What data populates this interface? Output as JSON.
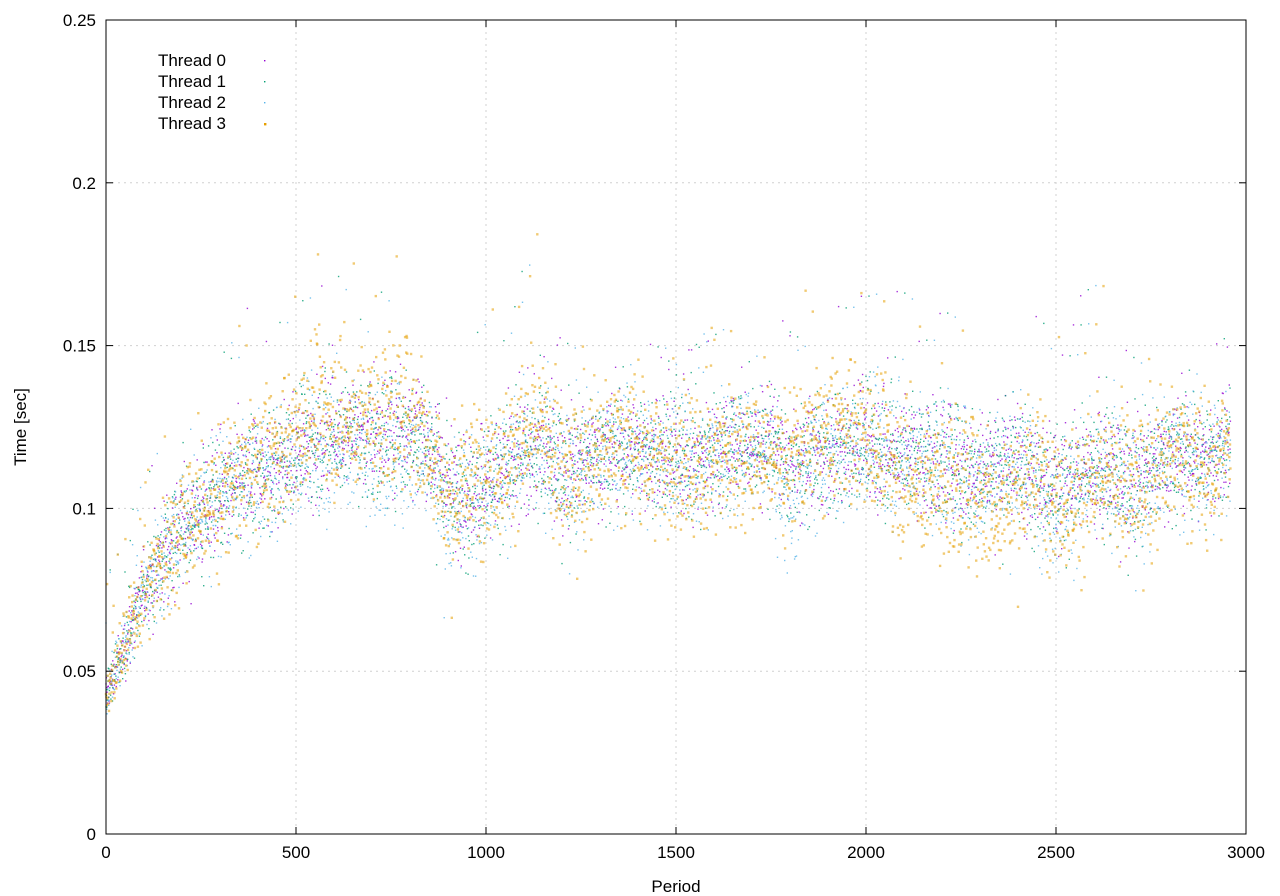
{
  "chart_data": {
    "type": "scatter",
    "title": "",
    "xlabel": "Period",
    "ylabel": "Time [sec]",
    "xlim": [
      0,
      3000
    ],
    "ylim": [
      0,
      0.25
    ],
    "xticks": [
      0,
      500,
      1000,
      1500,
      2000,
      2500,
      3000
    ],
    "yticks": [
      0,
      0.05,
      0.1,
      0.15,
      0.2,
      0.25
    ],
    "xtick_labels": [
      "0",
      "500",
      "1000",
      "1500",
      "2000",
      "2500",
      "3000"
    ],
    "ytick_labels": [
      "0",
      "0.05",
      "0.1",
      "0.15",
      "0.2",
      "0.25"
    ],
    "grid": true,
    "legend_position": "top-left",
    "series": [
      {
        "name": "Thread 0",
        "color": "#9400d3",
        "marker": "dot",
        "trend": [
          [
            0,
            0.042
          ],
          [
            25,
            0.05
          ],
          [
            50,
            0.058
          ],
          [
            75,
            0.067
          ],
          [
            100,
            0.075
          ],
          [
            150,
            0.086
          ],
          [
            200,
            0.094
          ],
          [
            250,
            0.099
          ],
          [
            300,
            0.103
          ],
          [
            350,
            0.107
          ],
          [
            400,
            0.11
          ],
          [
            450,
            0.113
          ],
          [
            500,
            0.116
          ],
          [
            550,
            0.121
          ],
          [
            600,
            0.123
          ],
          [
            650,
            0.124
          ],
          [
            700,
            0.122
          ],
          [
            750,
            0.124
          ],
          [
            800,
            0.126
          ],
          [
            850,
            0.12
          ],
          [
            900,
            0.107
          ],
          [
            950,
            0.106
          ],
          [
            1000,
            0.11
          ],
          [
            1050,
            0.112
          ],
          [
            1100,
            0.115
          ],
          [
            1150,
            0.118
          ],
          [
            1200,
            0.113
          ],
          [
            1250,
            0.114
          ],
          [
            1300,
            0.116
          ],
          [
            1350,
            0.119
          ],
          [
            1400,
            0.118
          ],
          [
            1450,
            0.116
          ],
          [
            1500,
            0.115
          ],
          [
            1550,
            0.114
          ],
          [
            1600,
            0.118
          ],
          [
            1650,
            0.12
          ],
          [
            1700,
            0.119
          ],
          [
            1750,
            0.121
          ],
          [
            1800,
            0.112
          ],
          [
            1850,
            0.116
          ],
          [
            1900,
            0.117
          ],
          [
            1950,
            0.119
          ],
          [
            2000,
            0.12
          ],
          [
            2050,
            0.118
          ],
          [
            2100,
            0.117
          ],
          [
            2150,
            0.115
          ],
          [
            2200,
            0.116
          ],
          [
            2250,
            0.114
          ],
          [
            2300,
            0.112
          ],
          [
            2350,
            0.114
          ],
          [
            2400,
            0.115
          ],
          [
            2450,
            0.113
          ],
          [
            2500,
            0.109
          ],
          [
            2550,
            0.108
          ],
          [
            2600,
            0.11
          ],
          [
            2650,
            0.111
          ],
          [
            2700,
            0.109
          ],
          [
            2750,
            0.112
          ],
          [
            2800,
            0.116
          ],
          [
            2850,
            0.117
          ],
          [
            2900,
            0.115
          ],
          [
            2950,
            0.119
          ]
        ]
      },
      {
        "name": "Thread 1",
        "color": "#009e73",
        "marker": "dot",
        "trend": [
          [
            0,
            0.042
          ],
          [
            25,
            0.05
          ],
          [
            50,
            0.058
          ],
          [
            75,
            0.067
          ],
          [
            100,
            0.075
          ],
          [
            150,
            0.086
          ],
          [
            200,
            0.094
          ],
          [
            250,
            0.099
          ],
          [
            300,
            0.103
          ],
          [
            350,
            0.107
          ],
          [
            400,
            0.11
          ],
          [
            450,
            0.113
          ],
          [
            500,
            0.116
          ],
          [
            550,
            0.12
          ],
          [
            600,
            0.122
          ],
          [
            650,
            0.122
          ],
          [
            700,
            0.121
          ],
          [
            750,
            0.122
          ],
          [
            800,
            0.124
          ],
          [
            850,
            0.119
          ],
          [
            900,
            0.104
          ],
          [
            950,
            0.105
          ],
          [
            1000,
            0.11
          ],
          [
            1050,
            0.112
          ],
          [
            1100,
            0.115
          ],
          [
            1150,
            0.117
          ],
          [
            1200,
            0.112
          ],
          [
            1250,
            0.114
          ],
          [
            1300,
            0.116
          ],
          [
            1350,
            0.118
          ],
          [
            1400,
            0.118
          ],
          [
            1450,
            0.116
          ],
          [
            1500,
            0.115
          ],
          [
            1550,
            0.114
          ],
          [
            1600,
            0.118
          ],
          [
            1650,
            0.12
          ],
          [
            1700,
            0.119
          ],
          [
            1750,
            0.12
          ],
          [
            1800,
            0.11
          ],
          [
            1850,
            0.115
          ],
          [
            1900,
            0.117
          ],
          [
            1950,
            0.118
          ],
          [
            2000,
            0.119
          ],
          [
            2050,
            0.118
          ],
          [
            2100,
            0.117
          ],
          [
            2150,
            0.115
          ],
          [
            2200,
            0.116
          ],
          [
            2250,
            0.113
          ],
          [
            2300,
            0.111
          ],
          [
            2350,
            0.113
          ],
          [
            2400,
            0.114
          ],
          [
            2450,
            0.112
          ],
          [
            2500,
            0.108
          ],
          [
            2550,
            0.107
          ],
          [
            2600,
            0.11
          ],
          [
            2650,
            0.11
          ],
          [
            2700,
            0.108
          ],
          [
            2750,
            0.111
          ],
          [
            2800,
            0.116
          ],
          [
            2850,
            0.117
          ],
          [
            2900,
            0.115
          ],
          [
            2950,
            0.119
          ]
        ]
      },
      {
        "name": "Thread 2",
        "color": "#56b4e9",
        "marker": "dot",
        "trend": [
          [
            0,
            0.042
          ],
          [
            25,
            0.05
          ],
          [
            50,
            0.058
          ],
          [
            75,
            0.067
          ],
          [
            100,
            0.075
          ],
          [
            150,
            0.086
          ],
          [
            200,
            0.094
          ],
          [
            250,
            0.099
          ],
          [
            300,
            0.103
          ],
          [
            350,
            0.106
          ],
          [
            400,
            0.109
          ],
          [
            450,
            0.112
          ],
          [
            500,
            0.115
          ],
          [
            550,
            0.118
          ],
          [
            600,
            0.118
          ],
          [
            650,
            0.118
          ],
          [
            700,
            0.117
          ],
          [
            750,
            0.118
          ],
          [
            800,
            0.12
          ],
          [
            850,
            0.116
          ],
          [
            900,
            0.095
          ],
          [
            950,
            0.104
          ],
          [
            1000,
            0.11
          ],
          [
            1050,
            0.112
          ],
          [
            1100,
            0.115
          ],
          [
            1150,
            0.116
          ],
          [
            1200,
            0.11
          ],
          [
            1250,
            0.113
          ],
          [
            1300,
            0.116
          ],
          [
            1350,
            0.118
          ],
          [
            1400,
            0.118
          ],
          [
            1450,
            0.116
          ],
          [
            1500,
            0.115
          ],
          [
            1550,
            0.114
          ],
          [
            1600,
            0.118
          ],
          [
            1650,
            0.12
          ],
          [
            1700,
            0.119
          ],
          [
            1750,
            0.118
          ],
          [
            1800,
            0.095
          ],
          [
            1850,
            0.113
          ],
          [
            1900,
            0.117
          ],
          [
            1950,
            0.118
          ],
          [
            2000,
            0.119
          ],
          [
            2050,
            0.118
          ],
          [
            2100,
            0.116
          ],
          [
            2150,
            0.114
          ],
          [
            2200,
            0.115
          ],
          [
            2250,
            0.112
          ],
          [
            2300,
            0.11
          ],
          [
            2350,
            0.112
          ],
          [
            2400,
            0.113
          ],
          [
            2450,
            0.11
          ],
          [
            2500,
            0.1
          ],
          [
            2550,
            0.106
          ],
          [
            2600,
            0.109
          ],
          [
            2650,
            0.109
          ],
          [
            2700,
            0.105
          ],
          [
            2750,
            0.11
          ],
          [
            2800,
            0.116
          ],
          [
            2850,
            0.116
          ],
          [
            2900,
            0.114
          ],
          [
            2950,
            0.119
          ]
        ]
      },
      {
        "name": "Thread 3",
        "color": "#e69f00",
        "marker": "small-square",
        "trend": [
          [
            0,
            0.042
          ],
          [
            25,
            0.05
          ],
          [
            50,
            0.058
          ],
          [
            75,
            0.067
          ],
          [
            100,
            0.075
          ],
          [
            150,
            0.086
          ],
          [
            200,
            0.094
          ],
          [
            250,
            0.1
          ],
          [
            300,
            0.104
          ],
          [
            350,
            0.108
          ],
          [
            400,
            0.113
          ],
          [
            450,
            0.118
          ],
          [
            500,
            0.122
          ],
          [
            550,
            0.13
          ],
          [
            600,
            0.128
          ],
          [
            650,
            0.126
          ],
          [
            700,
            0.127
          ],
          [
            750,
            0.13
          ],
          [
            800,
            0.132
          ],
          [
            850,
            0.12
          ],
          [
            900,
            0.1
          ],
          [
            950,
            0.108
          ],
          [
            1000,
            0.114
          ],
          [
            1050,
            0.114
          ],
          [
            1100,
            0.122
          ],
          [
            1150,
            0.124
          ],
          [
            1200,
            0.108
          ],
          [
            1250,
            0.113
          ],
          [
            1300,
            0.117
          ],
          [
            1350,
            0.12
          ],
          [
            1400,
            0.119
          ],
          [
            1450,
            0.115
          ],
          [
            1500,
            0.112
          ],
          [
            1550,
            0.11
          ],
          [
            1600,
            0.117
          ],
          [
            1650,
            0.118
          ],
          [
            1700,
            0.115
          ],
          [
            1750,
            0.117
          ],
          [
            1800,
            0.114
          ],
          [
            1850,
            0.12
          ],
          [
            1900,
            0.122
          ],
          [
            1950,
            0.126
          ],
          [
            2000,
            0.122
          ],
          [
            2050,
            0.115
          ],
          [
            2100,
            0.11
          ],
          [
            2150,
            0.106
          ],
          [
            2200,
            0.107
          ],
          [
            2250,
            0.108
          ],
          [
            2300,
            0.106
          ],
          [
            2350,
            0.1
          ],
          [
            2400,
            0.105
          ],
          [
            2450,
            0.113
          ],
          [
            2500,
            0.106
          ],
          [
            2550,
            0.103
          ],
          [
            2600,
            0.108
          ],
          [
            2650,
            0.107
          ],
          [
            2700,
            0.106
          ],
          [
            2750,
            0.11
          ],
          [
            2800,
            0.116
          ],
          [
            2850,
            0.115
          ],
          [
            2900,
            0.11
          ],
          [
            2950,
            0.118
          ]
        ]
      }
    ],
    "points_per_series": 2960,
    "noise_sd": 0.011
  }
}
